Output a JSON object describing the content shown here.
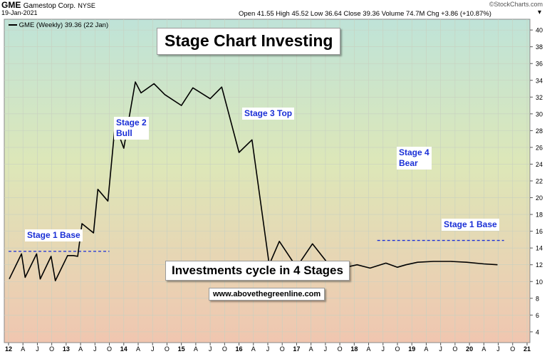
{
  "header": {
    "symbol": "GME",
    "company": "Gamestop Corp.",
    "exchange": "NYSE",
    "date": "19-Jan-2021",
    "watermark": "©StockCharts.com",
    "ohlc": "Open 41.55  High 45.52  Low 36.64  Close 39.36  Volume 74.7M  Chg +3.86 (+10.87%)"
  },
  "legend": "GME (Weekly) 39.36 (22 Jan)",
  "annotations": {
    "title": "Stage Chart Investing",
    "subtitle": "Investments cycle in 4 Stages",
    "website": "www.abovethegreenline.com",
    "stage1_left": "Stage 1 Base",
    "stage2_line1": "Stage 2",
    "stage2_line2": "Bull",
    "stage3": "Stage 3 Top",
    "stage4_line1": "Stage 4",
    "stage4_line2": "Bear",
    "stage1_right": "Stage 1 Base"
  },
  "colors": {
    "line": "#000000",
    "dashed_base": "#1a2fd6",
    "label_text": "#1a2fd6",
    "grid": "#c8d0c0"
  },
  "chart_data": {
    "type": "line",
    "title": "",
    "xlabel": "",
    "ylabel": "",
    "series": [
      {
        "name": "GME (Weekly)",
        "x": [
          0.05,
          0.9,
          1.15,
          1.95,
          2.2,
          2.95,
          3.25,
          4.1,
          4.5,
          4.8,
          5.1,
          5.9,
          6.2,
          6.9,
          7.4,
          8.0,
          8.8,
          9.2,
          10.1,
          10.85,
          12.0,
          12.8,
          14.0,
          14.8,
          16.0,
          16.9,
          18.1,
          18.8,
          20.0,
          21.1,
          22.2,
          22.9,
          24.2,
          25.1,
          26.2,
          27.0,
          27.6,
          28.4,
          29.5,
          30.7,
          31.8,
          33.0,
          33.95
        ],
        "y": [
          10.3,
          13.3,
          10.5,
          13.3,
          10.3,
          13.0,
          10.1,
          13.1,
          13.1,
          13.0,
          16.9,
          15.8,
          21.0,
          19.6,
          28.7,
          25.9,
          33.8,
          32.5,
          33.6,
          32.3,
          31.0,
          33.1,
          31.8,
          33.2,
          25.4,
          26.9,
          12.0,
          14.8,
          11.7,
          14.5,
          12.1,
          11.5,
          12.0,
          11.6,
          12.2,
          11.7,
          12.0,
          12.3,
          12.4,
          12.4,
          12.3,
          12.1,
          12.0
        ]
      }
    ],
    "x_ticks": [
      "12",
      "A",
      "J",
      "O",
      "13",
      "A",
      "J",
      "O",
      "14",
      "A",
      "J",
      "O",
      "15",
      "A",
      "J",
      "O",
      "16",
      "A",
      "J",
      "O",
      "17",
      "A",
      "J",
      "O",
      "18",
      "A",
      "J",
      "O",
      "19",
      "A",
      "J",
      "O",
      "20",
      "A",
      "J",
      "O",
      "21"
    ],
    "y_ticks": [
      4,
      6,
      8,
      10,
      12,
      14,
      16,
      18,
      20,
      22,
      24,
      26,
      28,
      30,
      32,
      34,
      36,
      38,
      40
    ],
    "ylim": [
      2.8,
      41.2
    ],
    "grid": true,
    "base_levels": [
      {
        "value": 13.6,
        "x_range": [
          0,
          7.0
        ]
      },
      {
        "value": 14.9,
        "x_range": [
          25.6,
          34.4
        ]
      }
    ]
  }
}
